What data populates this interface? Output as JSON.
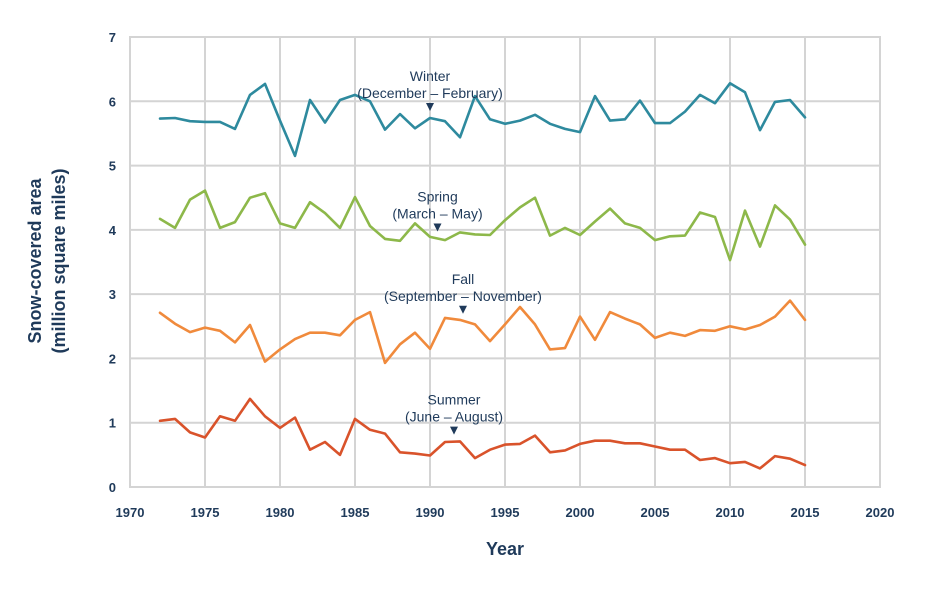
{
  "chart_data": {
    "type": "line",
    "title": "",
    "xlabel": "Year",
    "ylabel_line1": "Snow-covered area",
    "ylabel_line2": "(million square miles)",
    "xlim": [
      1970,
      2020
    ],
    "ylim": [
      0,
      7
    ],
    "xticks": [
      "1970",
      "1975",
      "1980",
      "1985",
      "1990",
      "1995",
      "2000",
      "2005",
      "2010",
      "2015",
      "2020"
    ],
    "yticks": [
      "0",
      "1",
      "2",
      "3",
      "4",
      "5",
      "6",
      "7"
    ],
    "grid": true,
    "legend": "none",
    "x": [
      1972,
      1973,
      1974,
      1975,
      1976,
      1977,
      1978,
      1979,
      1980,
      1981,
      1982,
      1983,
      1984,
      1985,
      1986,
      1987,
      1988,
      1989,
      1990,
      1991,
      1992,
      1993,
      1994,
      1995,
      1996,
      1997,
      1998,
      1999,
      2000,
      2001,
      2002,
      2003,
      2004,
      2005,
      2006,
      2007,
      2008,
      2009,
      2010,
      2011,
      2012,
      2013,
      2014,
      2015
    ],
    "series": [
      {
        "name": "Winter",
        "color": "#2e8a9e",
        "values": [
          5.73,
          5.74,
          5.69,
          5.68,
          5.68,
          5.57,
          6.1,
          6.27,
          5.7,
          5.15,
          6.02,
          5.67,
          6.02,
          6.1,
          6.0,
          5.56,
          5.8,
          5.58,
          5.74,
          5.69,
          5.44,
          6.08,
          5.72,
          5.65,
          5.7,
          5.79,
          5.65,
          5.57,
          5.52,
          6.08,
          5.7,
          5.72,
          6.01,
          5.66,
          5.66,
          5.84,
          6.1,
          5.97,
          6.28,
          6.14,
          5.55,
          5.99,
          6.02,
          5.75
        ]
      },
      {
        "name": "Spring",
        "color": "#8db84a",
        "values": [
          4.17,
          4.03,
          4.47,
          4.61,
          4.03,
          4.12,
          4.5,
          4.57,
          4.1,
          4.03,
          4.43,
          4.26,
          4.03,
          4.51,
          4.06,
          3.86,
          3.83,
          4.1,
          3.89,
          3.84,
          3.96,
          3.93,
          3.92,
          4.15,
          4.35,
          4.5,
          3.91,
          4.03,
          3.92,
          4.13,
          4.33,
          4.1,
          4.03,
          3.84,
          3.9,
          3.91,
          4.27,
          4.2,
          3.53,
          4.3,
          3.74,
          4.38,
          4.16,
          3.77
        ]
      },
      {
        "name": "Fall",
        "color": "#f08a3c",
        "values": [
          2.71,
          2.54,
          2.41,
          2.48,
          2.43,
          2.25,
          2.52,
          1.95,
          2.14,
          2.3,
          2.4,
          2.4,
          2.36,
          2.6,
          2.72,
          1.93,
          2.22,
          2.4,
          2.15,
          2.63,
          2.6,
          2.53,
          2.27,
          2.53,
          2.8,
          2.53,
          2.14,
          2.16,
          2.65,
          2.29,
          2.72,
          2.62,
          2.53,
          2.32,
          2.4,
          2.35,
          2.44,
          2.43,
          2.5,
          2.45,
          2.52,
          2.65,
          2.9,
          2.6
        ]
      },
      {
        "name": "Summer",
        "color": "#d9532b",
        "values": [
          1.03,
          1.06,
          0.85,
          0.77,
          1.1,
          1.03,
          1.37,
          1.1,
          0.92,
          1.08,
          0.58,
          0.7,
          0.5,
          1.06,
          0.89,
          0.83,
          0.54,
          0.52,
          0.49,
          0.7,
          0.71,
          0.45,
          0.58,
          0.66,
          0.67,
          0.8,
          0.54,
          0.57,
          0.67,
          0.72,
          0.72,
          0.68,
          0.68,
          0.63,
          0.58,
          0.58,
          0.42,
          0.45,
          0.37,
          0.39,
          0.29,
          0.48,
          0.44,
          0.34
        ]
      }
    ],
    "annotations": [
      {
        "series": "Winter",
        "line1": "Winter",
        "line2": "(December – February)",
        "year": 1990
      },
      {
        "series": "Spring",
        "line1": "Spring",
        "line2": "(March – May)",
        "year": 1990.5
      },
      {
        "series": "Fall",
        "line1": "Fall",
        "line2": "(September – November)",
        "year": 1992.2
      },
      {
        "series": "Summer",
        "line1": "Summer",
        "line2": "(June – August)",
        "year": 1991.6
      }
    ]
  }
}
